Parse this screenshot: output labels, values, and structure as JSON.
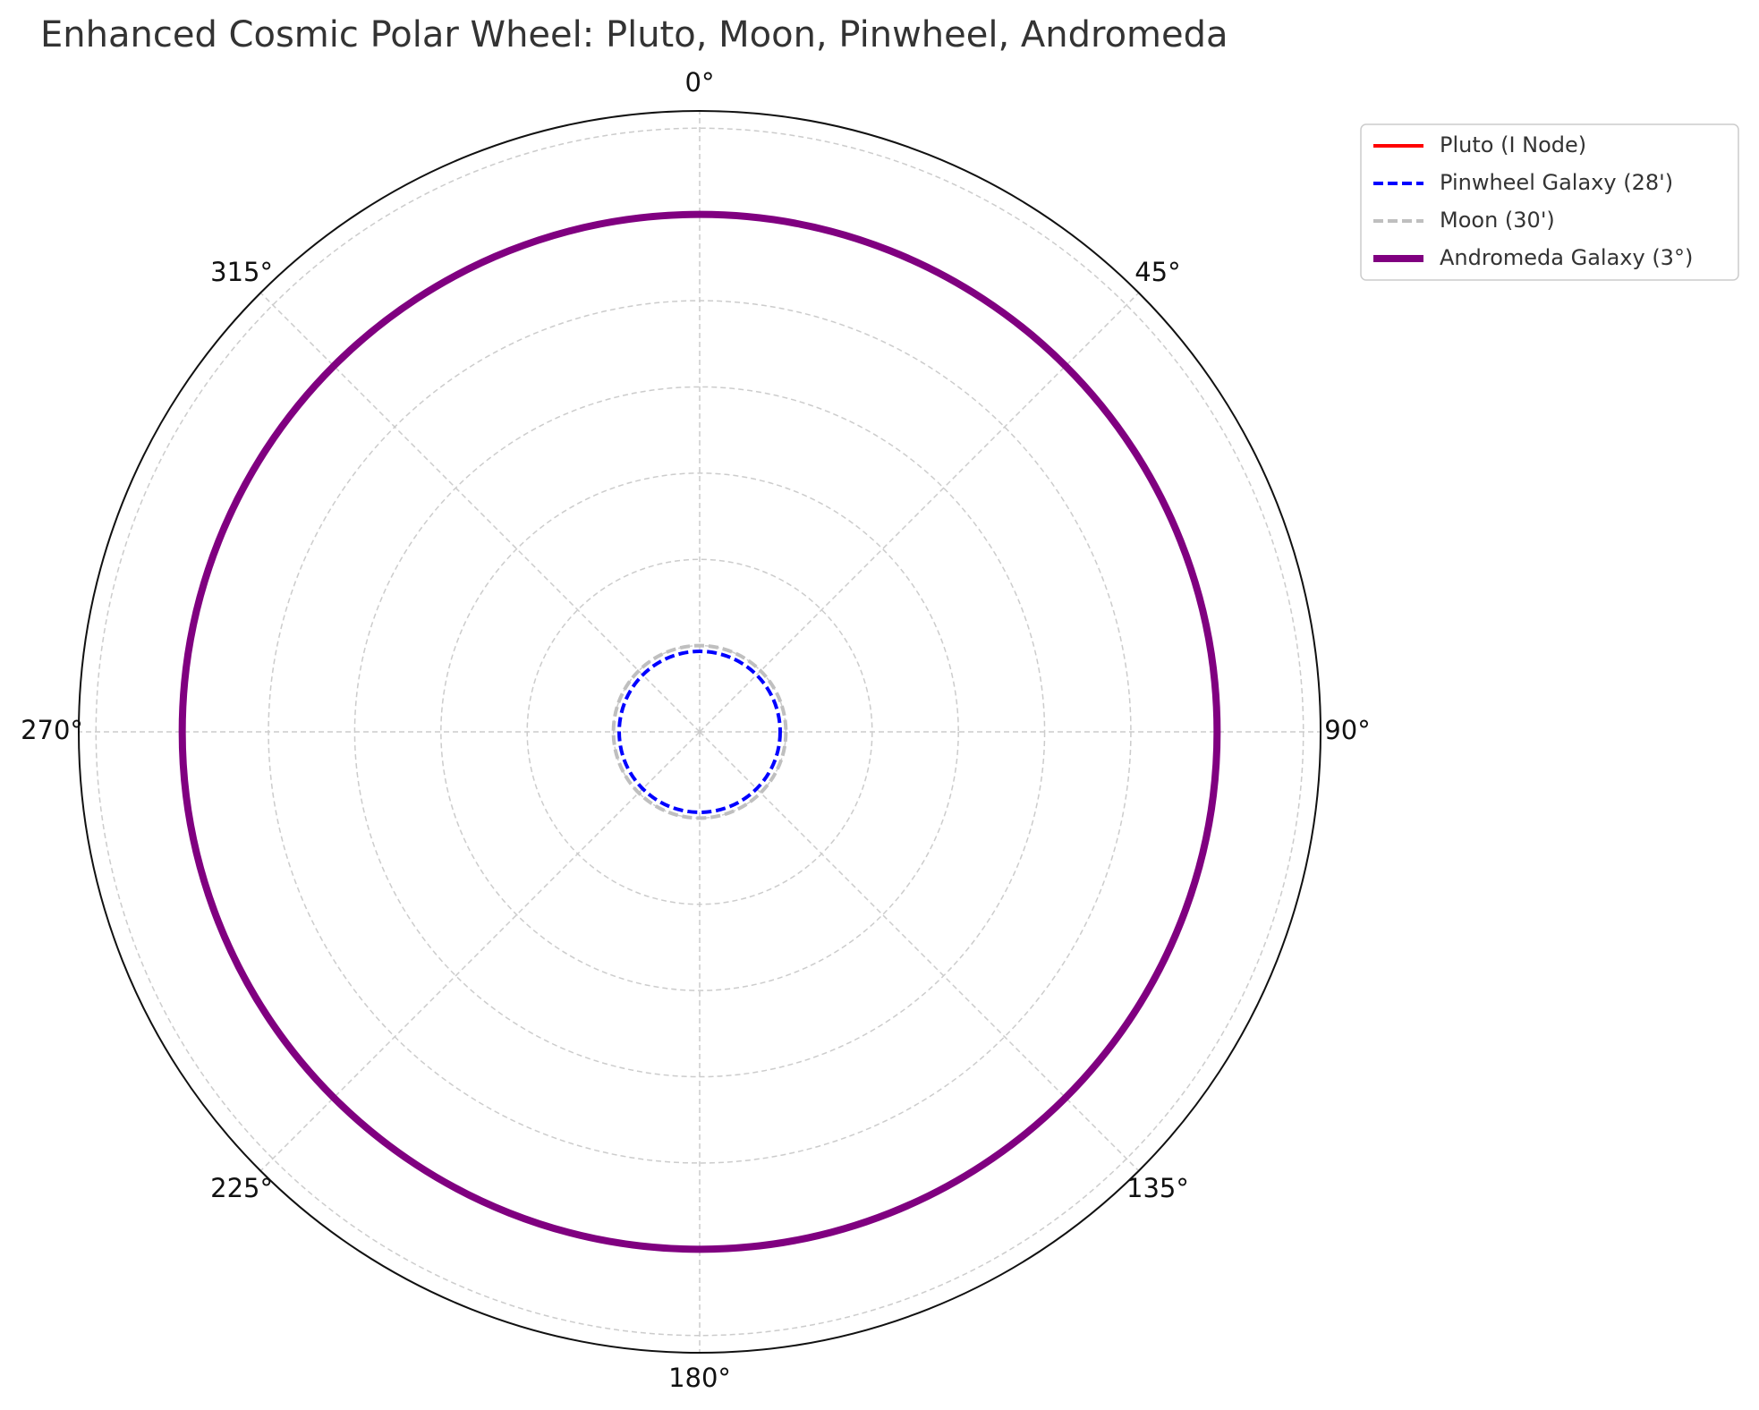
{
  "chart_data": {
    "type": "line",
    "projection": "polar",
    "title": "Enhanced Cosmic Polar Wheel: Pluto, Moon, Pinwheel, Andromeda",
    "theta_direction": "clockwise",
    "theta_zero": "top",
    "theta_ticks": [
      "0°",
      "45°",
      "90°",
      "135°",
      "180°",
      "225°",
      "270°",
      "315°"
    ],
    "theta_tick_values": [
      0,
      45,
      90,
      135,
      180,
      225,
      270,
      315
    ],
    "rlim": [
      0,
      3.6
    ],
    "r_gridlines": [
      0.5,
      1.0,
      1.5,
      2.0,
      2.5,
      3.0,
      3.5
    ],
    "grid": true,
    "legend_position": "upper-right-outside",
    "series": [
      {
        "name": "Pluto (I Node)",
        "r": 0.0,
        "color": "#ff0000",
        "dash": "solid",
        "width": 4
      },
      {
        "name": "Pinwheel Galaxy (28')",
        "r": 0.4667,
        "color": "#0000ff",
        "dash": "dashed",
        "width": 4
      },
      {
        "name": "Moon (30')",
        "r": 0.5,
        "color": "#bfbfbf",
        "dash": "dashed",
        "width": 4
      },
      {
        "name": "Andromeda Galaxy (3°)",
        "r": 3.0,
        "color": "#800080",
        "dash": "solid",
        "width": 8
      }
    ]
  }
}
